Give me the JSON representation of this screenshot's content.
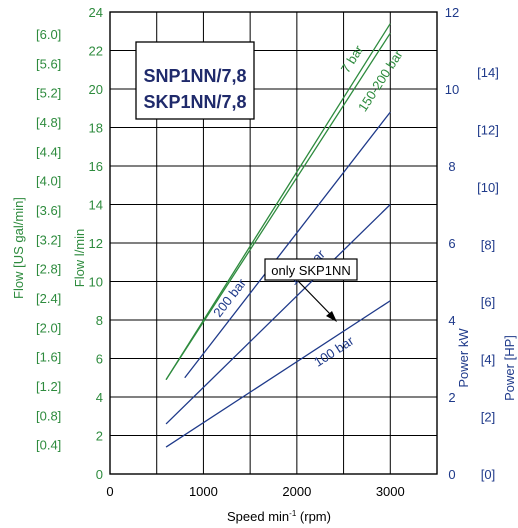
{
  "chart_data": {
    "type": "line",
    "title_lines": [
      "SNP1NN/7,8",
      "SKP1NN/7,8"
    ],
    "xlabel_prefix": "Speed min",
    "xlabel_sup": "-1",
    "xlabel_suffix": " (rpm)",
    "x_ticks": [
      "0",
      "1000",
      "2000",
      "3000"
    ],
    "xlim": [
      0,
      3500
    ],
    "flow_label": "Flow  l/min",
    "flow_ticks": [
      "0",
      "2",
      "4",
      "6",
      "8",
      "10",
      "12",
      "14",
      "16",
      "18",
      "20",
      "22",
      "24"
    ],
    "ylim_flow": [
      0,
      24
    ],
    "usgal_label": "Flow  [US gal/min]",
    "usgal_ticks": [
      "[0.4]",
      "[0.8]",
      "[1.2]",
      "[1.6]",
      "[2.0]",
      "[2.4]",
      "[2.8]",
      "[3.2]",
      "[3.6]",
      "[4.0]",
      "[4.4]",
      "[4.8]",
      "[5.2]",
      "[5.6]",
      "[6.0]"
    ],
    "kw_label": "Power  kW",
    "kw_ticks": [
      "0",
      "2",
      "4",
      "6",
      "8",
      "10",
      "12"
    ],
    "ylim_kw": [
      0,
      12
    ],
    "hp_label": "Power [HP]",
    "hp_ticks": [
      "[0]",
      "[2]",
      "[4]",
      "[6]",
      "[8]",
      "[10]",
      "[12]",
      "[14]"
    ],
    "annotation": "only SKP1NN",
    "flow_series": [
      {
        "name": "7 bar",
        "x": [
          600,
          3000
        ],
        "y": [
          4.9,
          23.4
        ]
      },
      {
        "name": "150-200 bar",
        "x": [
          600,
          3000
        ],
        "y": [
          4.9,
          22.9
        ]
      }
    ],
    "power_series": [
      {
        "name": "200 bar",
        "x": [
          800,
          3000
        ],
        "y": [
          2.5,
          9.4
        ]
      },
      {
        "name": "150 bar",
        "x": [
          600,
          3000
        ],
        "y": [
          1.3,
          7.0
        ]
      },
      {
        "name": "100 bar",
        "x": [
          600,
          3000
        ],
        "y": [
          0.7,
          4.5
        ]
      }
    ],
    "colors": {
      "flow": "#2e8b3e",
      "power": "#1f3a8a",
      "axis": "#000000",
      "title": "#1f2a6b"
    },
    "grid": true
  }
}
